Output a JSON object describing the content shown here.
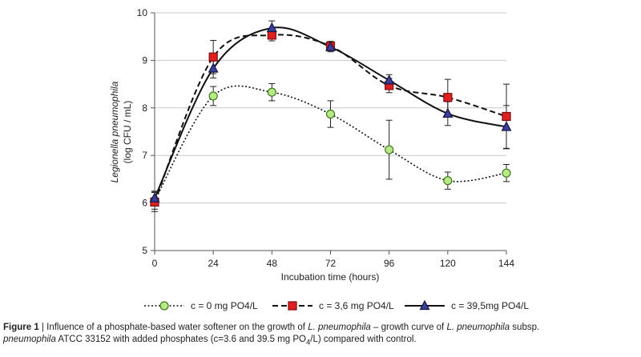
{
  "chart_data": {
    "type": "line",
    "xlabel": "Incubation time  (hours)",
    "ylabel_line1": "Legionella pneumophila",
    "ylabel_line2": "(log CFU / mL)",
    "x": [
      0,
      24,
      48,
      72,
      96,
      120,
      144
    ],
    "x_tick_labels": [
      "0",
      "24",
      "48",
      "72",
      "96",
      "120",
      "144"
    ],
    "ylim": [
      5,
      10
    ],
    "y_ticks": [
      5,
      6,
      7,
      8,
      9,
      10
    ],
    "y_tick_labels": [
      "5",
      "6",
      "7",
      "8",
      "9",
      "10"
    ],
    "grid": "horizontal",
    "legend_position": "bottom",
    "series": [
      {
        "name": "c = 0 mg PO4/L",
        "line_style": "dotted",
        "marker": "circle",
        "marker_color": "#b8e986",
        "values": [
          6.05,
          8.25,
          8.33,
          7.87,
          7.12,
          6.47,
          6.63
        ],
        "error": [
          0.18,
          0.2,
          0.18,
          0.28,
          0.62,
          0.18,
          0.18
        ]
      },
      {
        "name": "c = 3,6 mg PO4/L",
        "line_style": "dashed",
        "marker": "square",
        "marker_color": "#e02020",
        "values": [
          6.02,
          9.07,
          9.53,
          9.3,
          8.47,
          8.22,
          7.82
        ],
        "error": [
          0.2,
          0.35,
          0.12,
          0.1,
          0.15,
          0.38,
          0.68
        ]
      },
      {
        "name": "c = 39,5mg PO4/L",
        "line_style": "solid",
        "marker": "triangle",
        "marker_color": "#3a3f9e",
        "values": [
          6.1,
          8.83,
          9.68,
          9.28,
          8.58,
          7.88,
          7.6
        ],
        "error": [
          0.15,
          0.2,
          0.15,
          0.1,
          0.12,
          0.25,
          0.45
        ]
      }
    ]
  },
  "caption": {
    "label": "Figure 1",
    "separator": " | ",
    "t1": "Influence of a phosphate-based water softener on the growth of ",
    "i1": "L. pneumophila",
    "t2": " – growth curve of ",
    "i2": "L. pneumophila",
    "t3": " subsp.",
    "i3": "pneumophila",
    "t4": " ATCC 33152 with added phosphates (c=3.6 and 39.5 mg PO",
    "sub": "4",
    "t5": "/L) compared with control."
  }
}
